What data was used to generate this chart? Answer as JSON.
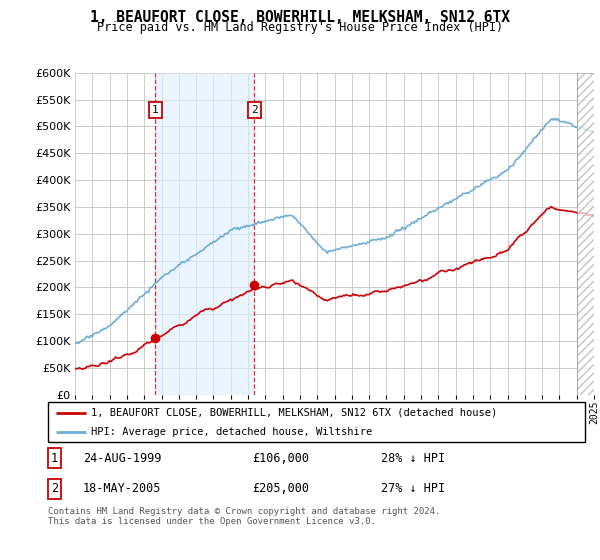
{
  "title": "1, BEAUFORT CLOSE, BOWERHILL, MELKSHAM, SN12 6TX",
  "subtitle": "Price paid vs. HM Land Registry's House Price Index (HPI)",
  "ylim": [
    0,
    600000
  ],
  "yticks": [
    0,
    50000,
    100000,
    150000,
    200000,
    250000,
    300000,
    350000,
    400000,
    450000,
    500000,
    550000,
    600000
  ],
  "ytick_labels": [
    "£0",
    "£50K",
    "£100K",
    "£150K",
    "£200K",
    "£250K",
    "£300K",
    "£350K",
    "£400K",
    "£450K",
    "£500K",
    "£550K",
    "£600K"
  ],
  "hpi_color": "#6baed6",
  "price_color": "#cc0000",
  "purchase1_x": 1999.646,
  "purchase1_y": 106000,
  "purchase2_x": 2005.372,
  "purchase2_y": 205000,
  "legend_line1": "1, BEAUFORT CLOSE, BOWERHILL, MELKSHAM, SN12 6TX (detached house)",
  "legend_line2": "HPI: Average price, detached house, Wiltshire",
  "purchase1_date": "24-AUG-1999",
  "purchase1_price": "£106,000",
  "purchase1_hpi": "28% ↓ HPI",
  "purchase2_date": "18-MAY-2005",
  "purchase2_price": "£205,000",
  "purchase2_hpi": "27% ↓ HPI",
  "footnote": "Contains HM Land Registry data © Crown copyright and database right 2024.\nThis data is licensed under the Open Government Licence v3.0.",
  "bg_color": "#ffffff",
  "grid_color": "#cccccc",
  "shade_color": "#ddeeff",
  "hatch_color": "#aaccdd",
  "xmin": 1995,
  "xmax": 2025
}
